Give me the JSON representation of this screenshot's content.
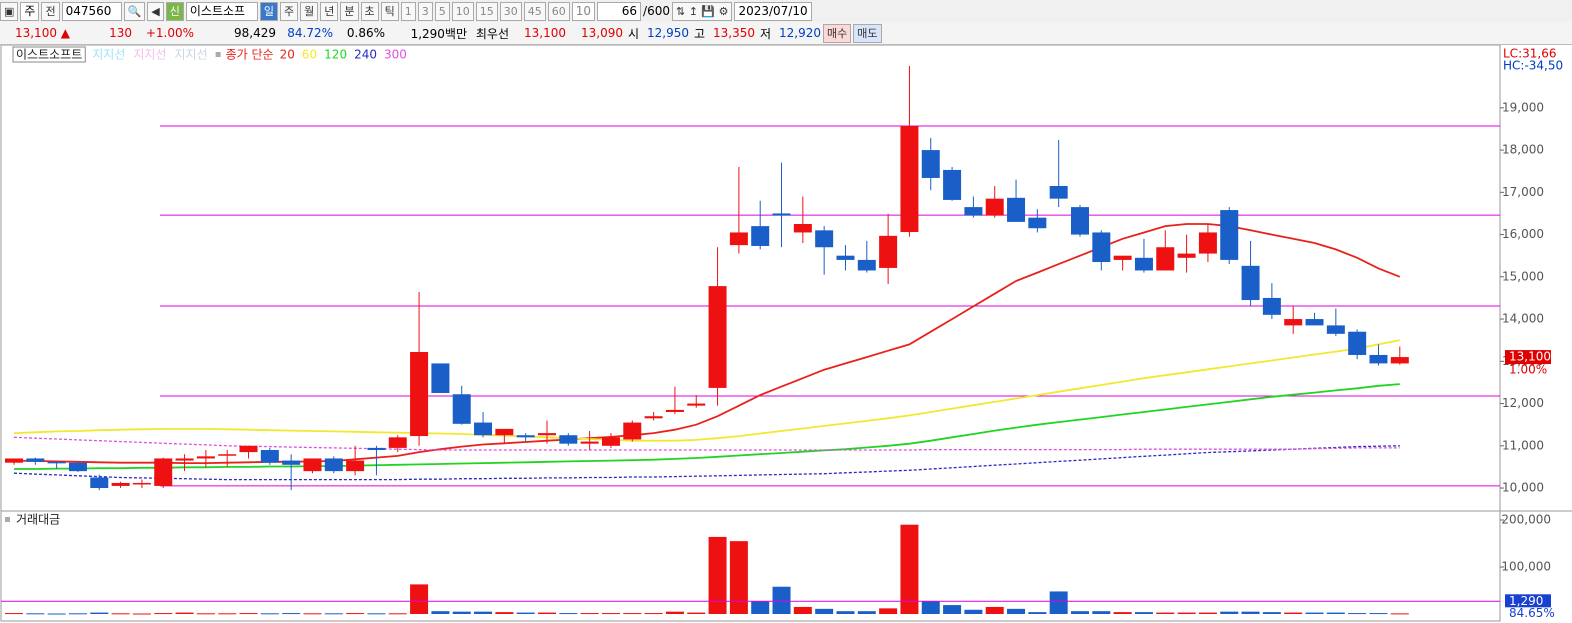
{
  "toolbar": {
    "period_select": "주",
    "prev": "전",
    "code": "047560",
    "new_badge": "신",
    "name": "이스트소프",
    "periods": [
      "일",
      "주",
      "월",
      "년",
      "분",
      "초",
      "틱"
    ],
    "intervals": [
      "1",
      "3",
      "5",
      "10",
      "15",
      "30",
      "45",
      "60"
    ],
    "custom_interval": "10",
    "count": "66",
    "count_total": "/600",
    "date": "2023/07/10"
  },
  "quote": {
    "price": "13,100 ▲",
    "change": "130",
    "change_pct": "+1.00%",
    "volume": "98,429",
    "vol_ratio": "84.72%",
    "turnover": "0.86%",
    "amount": "1,290백만",
    "best_label": "최우선",
    "best_ask": "13,100",
    "best_bid": "13,090",
    "open_label": "시",
    "open": "12,950",
    "high_label": "고",
    "high": "13,350",
    "low_label": "저",
    "low": "12,920",
    "buy": "매수",
    "sell": "매도"
  },
  "chart_data": [
    {
      "type": "candlestick",
      "title": "이스트소프트",
      "open": [
        10600,
        10700,
        10620,
        10600,
        10250,
        10050,
        10100,
        10050,
        10650,
        10700,
        10800,
        10850,
        10900,
        10650,
        10400,
        10700,
        10400,
        10950,
        10950,
        11230,
        12950,
        12220,
        11550,
        11250,
        11250,
        11250,
        11250,
        11050,
        11000,
        11150,
        11650,
        11800,
        11950,
        12370,
        15750,
        16200,
        16500,
        16050,
        16100,
        15500,
        15400,
        15210,
        16060,
        18000,
        17530,
        16650,
        16450,
        16870,
        16400,
        17150,
        16650,
        16050,
        15400,
        15450,
        15150,
        15450,
        15550,
        16580,
        15260,
        14500,
        13850,
        14000,
        13850,
        13700,
        13150,
        12950
      ],
      "high": [
        10700,
        10720,
        10640,
        10620,
        10320,
        10150,
        10200,
        10720,
        10800,
        10900,
        10900,
        11000,
        10950,
        10800,
        10700,
        10750,
        11000,
        11000,
        11250,
        14640,
        12950,
        12420,
        11800,
        11400,
        11300,
        11600,
        11300,
        11350,
        11300,
        11600,
        11800,
        12400,
        12200,
        15700,
        17600,
        16800,
        17700,
        16900,
        16200,
        15750,
        15850,
        16490,
        19990,
        18290,
        17600,
        16900,
        17150,
        17300,
        16600,
        18240,
        16700,
        16100,
        15500,
        15900,
        16100,
        16000,
        16250,
        16650,
        15850,
        14850,
        14300,
        14150,
        14250,
        13750,
        13400,
        13350
      ],
      "low": [
        10550,
        10550,
        10450,
        10380,
        9950,
        10000,
        10000,
        10000,
        10400,
        10500,
        10500,
        10700,
        10550,
        9950,
        10350,
        10350,
        10300,
        10300,
        10850,
        11000,
        12250,
        11500,
        11200,
        11050,
        11100,
        11050,
        11000,
        10900,
        10950,
        11100,
        11600,
        11750,
        11900,
        11950,
        15550,
        15650,
        15700,
        15800,
        15050,
        15150,
        15100,
        14830,
        15950,
        17050,
        16800,
        16400,
        16400,
        16300,
        16050,
        16650,
        15950,
        15150,
        15150,
        15100,
        15150,
        15100,
        15350,
        15300,
        14300,
        14000,
        13650,
        13850,
        13600,
        13050,
        12900,
        12920
      ],
      "close": [
        10700,
        10620,
        10600,
        10400,
        10000,
        10120,
        10120,
        10700,
        10700,
        10750,
        10800,
        11000,
        10600,
        10550,
        10700,
        10400,
        10650,
        10900,
        11200,
        13220,
        12250,
        11520,
        11250,
        11400,
        11200,
        11300,
        11050,
        11100,
        11200,
        11550,
        11700,
        11850,
        12000,
        14780,
        16050,
        15730,
        16450,
        16250,
        15700,
        15400,
        15150,
        15970,
        18570,
        17340,
        16820,
        16450,
        16850,
        16300,
        16150,
        16850,
        16000,
        15350,
        15500,
        15150,
        15700,
        15550,
        16050,
        15400,
        14450,
        14100,
        14000,
        13850,
        13650,
        13150,
        12950,
        13100
      ],
      "up_color": "#ee1111",
      "down_color": "#1a5fc8",
      "ylim": [
        9480,
        20440
      ],
      "yticks": [
        {
          "value": 10000,
          "label": "10,000"
        },
        {
          "value": 11000,
          "label": "11,000"
        },
        {
          "value": 12000,
          "label": "12,000"
        },
        {
          "value": 13000,
          "label": "13,000"
        },
        {
          "value": 14000,
          "label": "14,000"
        },
        {
          "value": 15000,
          "label": "15,000"
        },
        {
          "value": 16000,
          "label": "16,000"
        },
        {
          "value": 17000,
          "label": "17,000"
        },
        {
          "value": 18000,
          "label": "18,000"
        },
        {
          "value": 19000,
          "label": "19,000"
        }
      ],
      "profile_legend": [
        {
          "name": "지지선",
          "color": "#9fe4f6"
        },
        {
          "name": "지지선",
          "color": "#f6bdf0"
        },
        {
          "name": "지지선",
          "color": "#c9d6e4"
        }
      ],
      "support_lines": [
        18570,
        16460,
        14310,
        12180,
        10050
      ],
      "support_color": "#e000e0",
      "ma_label": "종가 단순",
      "moving_averages": [
        {
          "name": "20",
          "color": "#e8221b",
          "dashed": false,
          "values": [
            10650,
            10640,
            10630,
            10620,
            10610,
            10600,
            10600,
            10600,
            10590,
            10590,
            10600,
            10610,
            10620,
            10620,
            10630,
            10640,
            10680,
            10720,
            10760,
            10850,
            10920,
            10980,
            11030,
            11060,
            11090,
            11120,
            11150,
            11180,
            11210,
            11250,
            11300,
            11380,
            11500,
            11700,
            11950,
            12200,
            12400,
            12600,
            12800,
            12950,
            13100,
            13250,
            13400,
            13700,
            14000,
            14300,
            14600,
            14900,
            15100,
            15300,
            15500,
            15700,
            15900,
            16050,
            16200,
            16250,
            16250,
            16200,
            16100,
            16000,
            15900,
            15800,
            15650,
            15450,
            15200,
            15000
          ]
        },
        {
          "name": "60",
          "color": "#f2e830",
          "dashed": false,
          "values": [
            11300,
            11320,
            11340,
            11350,
            11370,
            11380,
            11390,
            11400,
            11400,
            11400,
            11390,
            11380,
            11370,
            11360,
            11350,
            11340,
            11330,
            11320,
            11310,
            11300,
            11290,
            11280,
            11260,
            11240,
            11220,
            11200,
            11180,
            11160,
            11140,
            11120,
            11120,
            11120,
            11140,
            11180,
            11230,
            11290,
            11350,
            11410,
            11470,
            11530,
            11590,
            11650,
            11720,
            11800,
            11880,
            11960,
            12040,
            12120,
            12200,
            12280,
            12360,
            12440,
            12520,
            12600,
            12670,
            12740,
            12810,
            12880,
            12950,
            13020,
            13090,
            13160,
            13230,
            13300,
            13400,
            13500
          ]
        },
        {
          "name": "120",
          "color": "#22d422",
          "dashed": false,
          "values": [
            10450,
            10450,
            10460,
            10460,
            10470,
            10470,
            10480,
            10480,
            10490,
            10490,
            10500,
            10500,
            10510,
            10510,
            10520,
            10520,
            10530,
            10540,
            10550,
            10560,
            10570,
            10580,
            10590,
            10600,
            10610,
            10620,
            10630,
            10640,
            10650,
            10660,
            10670,
            10690,
            10710,
            10740,
            10770,
            10800,
            10830,
            10860,
            10890,
            10920,
            10960,
            11000,
            11050,
            11120,
            11200,
            11280,
            11360,
            11430,
            11500,
            11560,
            11620,
            11680,
            11740,
            11800,
            11860,
            11920,
            11980,
            12040,
            12100,
            12160,
            12210,
            12260,
            12310,
            12360,
            12420,
            12460
          ]
        },
        {
          "name": "240",
          "color": "#2a2ac0",
          "dashed": true,
          "values": [
            10350,
            10330,
            10310,
            10290,
            10270,
            10250,
            10240,
            10230,
            10220,
            10210,
            10200,
            10200,
            10200,
            10200,
            10200,
            10200,
            10200,
            10200,
            10200,
            10210,
            10210,
            10220,
            10220,
            10230,
            10230,
            10240,
            10240,
            10250,
            10250,
            10260,
            10260,
            10270,
            10280,
            10290,
            10300,
            10310,
            10320,
            10330,
            10340,
            10360,
            10380,
            10400,
            10420,
            10450,
            10480,
            10510,
            10540,
            10570,
            10600,
            10630,
            10660,
            10690,
            10720,
            10750,
            10780,
            10810,
            10840,
            10860,
            10880,
            10900,
            10920,
            10940,
            10960,
            10980,
            10990,
            11000
          ]
        },
        {
          "name": "300",
          "color": "#e050e0",
          "dashed": true,
          "values": [
            11200,
            11180,
            11160,
            11140,
            11120,
            11100,
            11080,
            11060,
            11040,
            11020,
            11000,
            10990,
            10980,
            10970,
            10960,
            10950,
            10940,
            10930,
            10920,
            10910,
            10900,
            10900,
            10900,
            10900,
            10900,
            10900,
            10900,
            10900,
            10900,
            10900,
            10900,
            10900,
            10900,
            10900,
            10900,
            10900,
            10900,
            10900,
            10900,
            10900,
            10900,
            10900,
            10900,
            10910,
            10910,
            10910,
            10910,
            10910,
            10910,
            10910,
            10910,
            10910,
            10910,
            10920,
            10920,
            10920,
            10920,
            10920,
            10920,
            10920,
            10920,
            10930,
            10940,
            10950,
            10950,
            10950
          ]
        }
      ],
      "last_price_label": "13,100",
      "last_change_label": "1.00%",
      "lc_label": "LC:31,66",
      "hc_label": "HC:-34,50"
    },
    {
      "type": "bar",
      "title": "거래대금",
      "values": [
        2000,
        1500,
        1000,
        1500,
        3000,
        1500,
        1000,
        2000,
        3000,
        1500,
        1500,
        2000,
        1500,
        2000,
        1500,
        1500,
        2000,
        1500,
        1500,
        63000,
        6000,
        5000,
        5000,
        4000,
        3000,
        3000,
        2000,
        2000,
        2000,
        2000,
        2000,
        5000,
        3000,
        164000,
        155000,
        27000,
        58000,
        15000,
        11000,
        6000,
        6000,
        12000,
        190000,
        27000,
        19000,
        9000,
        15000,
        11000,
        4000,
        48000,
        6000,
        6000,
        4000,
        4000,
        3000,
        3000,
        3000,
        5000,
        5000,
        4000,
        3000,
        3000,
        3000,
        2000,
        2000,
        1290
      ],
      "ylim": [
        0,
        217000
      ],
      "yticks": [
        {
          "value": 100000,
          "label": "100,000"
        },
        {
          "value": 200000,
          "label": "200,000"
        }
      ],
      "guide_line": 27000,
      "last_label": "1,290",
      "ratio_label": "84.65%"
    }
  ]
}
